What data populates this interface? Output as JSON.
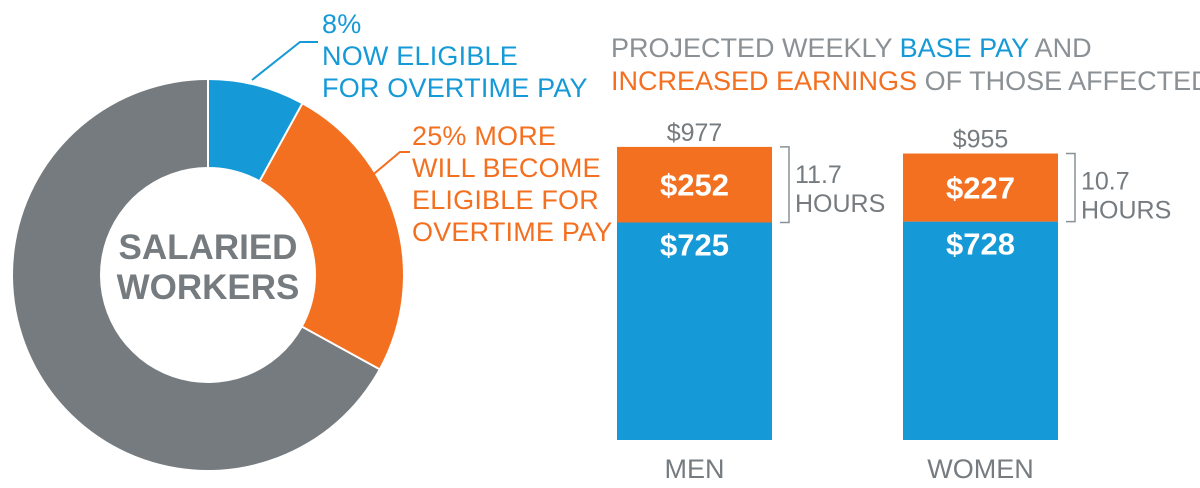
{
  "colors": {
    "blue": "#169ad7",
    "orange": "#f37021",
    "gray": "#757b7f",
    "light_gray": "#8a9094"
  },
  "chart_data": [
    {
      "type": "pie",
      "variant": "donut",
      "center_label": [
        "SALARIED",
        "WORKERS"
      ],
      "slices": [
        {
          "label": "NOW ELIGIBLE FOR OVERTIME PAY",
          "value": 8,
          "color": "#169ad7"
        },
        {
          "label": "WILL BECOME ELIGIBLE FOR OVERTIME PAY",
          "value": 25,
          "color": "#f37021"
        },
        {
          "label": "",
          "value": 67,
          "color": "#757b7f"
        }
      ],
      "annotations": {
        "blue_lines": [
          "8%",
          "NOW ELIGIBLE",
          "FOR OVERTIME PAY"
        ],
        "orange_lines": [
          "25% MORE",
          "WILL BECOME",
          "ELIGIBLE FOR",
          "OVERTIME PAY"
        ]
      }
    },
    {
      "type": "bar",
      "stacked": true,
      "title_parts": [
        {
          "text": "PROJECTED WEEKLY ",
          "style": "plain"
        },
        {
          "text": "BASE PAY",
          "style": "blue"
        },
        {
          "text": " AND",
          "style": "plain"
        },
        {
          "text": "INCREASED EARNINGS",
          "style": "orange",
          "newline": true
        },
        {
          "text": " OF THOSE AFFECTED",
          "style": "plain"
        }
      ],
      "categories": [
        "MEN",
        "WOMEN"
      ],
      "series": [
        {
          "name": "BASE PAY",
          "values": [
            725,
            728
          ],
          "labels": [
            "$725",
            "$728"
          ],
          "color": "#169ad7"
        },
        {
          "name": "INCREASED EARNINGS",
          "values": [
            252,
            227
          ],
          "labels": [
            "$252",
            "$227"
          ],
          "color": "#f37021"
        }
      ],
      "totals": [
        "$977",
        "$955"
      ],
      "hours": [
        [
          "11.7",
          "HOURS"
        ],
        [
          "10.7",
          "HOURS"
        ]
      ],
      "ylim": [
        0,
        1000
      ]
    }
  ]
}
